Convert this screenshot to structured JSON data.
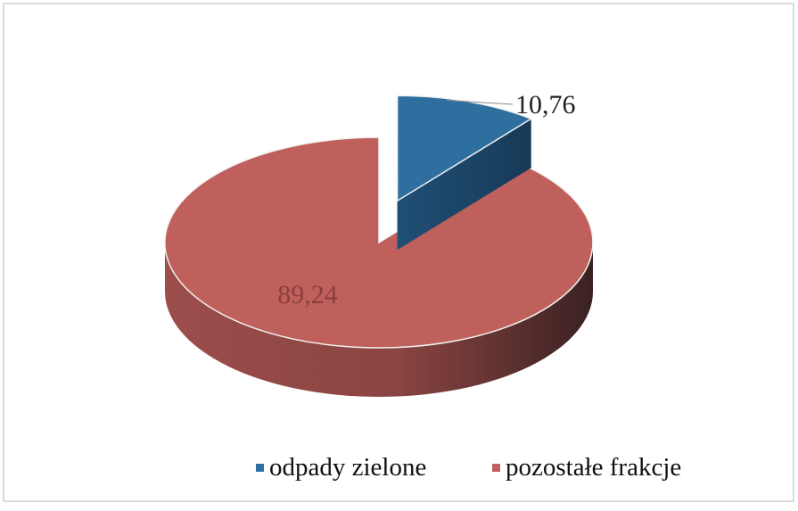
{
  "chart_data": {
    "type": "pie",
    "categories": [
      "odpady zielone",
      "pozostałe frakcje"
    ],
    "values": [
      10.76,
      89.24
    ],
    "value_labels": [
      "10,76",
      "89,24"
    ],
    "colors": [
      "#2f6fa0",
      "#c0605c"
    ],
    "legend": "bottom"
  }
}
